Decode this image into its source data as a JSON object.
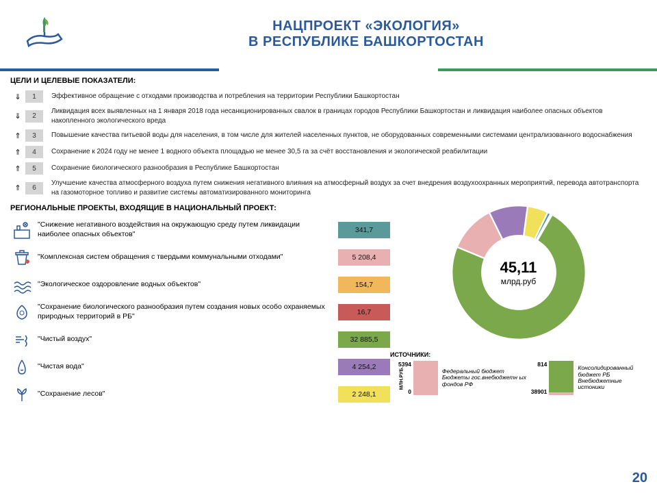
{
  "header": {
    "title_line1": "НАЦПРОЕКТ «ЭКОЛОГИЯ»",
    "title_line2": "В РЕСПУБЛИКЕ БАШКОРТОСТАН",
    "title_color": "#2a5a9b",
    "stripe_colors": [
      "#2a5a9b",
      "#ffffff",
      "#3a9a5c"
    ]
  },
  "goals_title": "ЦЕЛИ И ЦЕЛЕВЫЕ ПОКАЗАТЕЛИ:",
  "goals_numbox_bg": "#d5d5d5",
  "goals": [
    {
      "arrow": "⇓",
      "num": "1",
      "text": "Эффективное обращение с отходами производства и потребления на территории Республики Башкортостан"
    },
    {
      "arrow": "⇓",
      "num": "2",
      "text": "Ликвидация всех выявленных на 1 января 2018 года несанкционированных свалок в границах городов Республики Башкортостан и ликвидация наиболее опасных объектов накопленного экологического вреда"
    },
    {
      "arrow": "⇑",
      "num": "3",
      "text": "Повышение качества питьевой воды для населения, в том числе для жителей населенных пунктов, не оборудованных современными системами централизованного водоснабжения"
    },
    {
      "arrow": "⇑",
      "num": "4",
      "text": "Сохранение к 2024 году не менее 1 водного объекта площадью не менее 30,5 га за счёт восстановления и экологической реабилитации"
    },
    {
      "arrow": "⇑",
      "num": "5",
      "text": "Сохранение биологического разнообразия в Республике Башкортостан"
    },
    {
      "arrow": "⇑",
      "num": "6",
      "text": "Улучшение качества атмосферного воздуха путем снижения негативного влияния на атмосферный воздух за счет внедрения воздухоохранных мероприятий, перевода автотранспорта на газомоторное топливо и развитие системы автоматизированного мониторинга"
    }
  ],
  "projects_title": "РЕГИОНАЛЬНЫЕ ПРОЕКТЫ, ВХОДЯЩИЕ В НАЦИОНАЛЬНЫЙ ПРОЕКТ:",
  "projects": [
    {
      "text": "\"Снижение негативного воздействия на окружающую среду путем ликвидации наиболее опасных объектов\"",
      "value": "341,7",
      "color": "#5a9a9a"
    },
    {
      "text": "\"Комплексная систем обращения с твердыми коммунальными отходами\"",
      "value": "5 208,4",
      "color": "#e8b0b0"
    },
    {
      "text": "\"Экологическое оздоровление водных объектов\"",
      "value": "154,7",
      "color": "#f0b85a"
    },
    {
      "text": "\"Сохранение биологического разнообразия путем создания новых особо охраняемых природных территорий в РБ\"",
      "value": "16,7",
      "color": "#c85a5a"
    },
    {
      "text": "\"Чистый воздух\"",
      "value": "32 885,5",
      "color": "#7aa84a"
    },
    {
      "text": "\"Чистая вода\"",
      "value": "4 254,2",
      "color": "#9a7ab8"
    },
    {
      "text": "\"Сохранение лесов\"",
      "value": "2 248,1",
      "color": "#f0e05a"
    }
  ],
  "donut": {
    "center_value": "45,11",
    "center_unit": "млрд.руб",
    "slices": [
      {
        "color": "#7aa84a",
        "pct": 72.9
      },
      {
        "color": "#e8b0b0",
        "pct": 11.5
      },
      {
        "color": "#9a7ab8",
        "pct": 9.4
      },
      {
        "color": "#f0e05a",
        "pct": 5.0
      },
      {
        "color": "#5a9a9a",
        "pct": 0.8
      },
      {
        "color": "#f0b85a",
        "pct": 0.3
      },
      {
        "color": "#c85a5a",
        "pct": 0.1
      }
    ],
    "inner_ratio": 0.55,
    "stroke": "#ffffff",
    "stroke_width": 2
  },
  "sources": {
    "title": "ИСТОЧНИКИ:",
    "axis_label": "МЛН.РУБ.",
    "col1": {
      "top_val": "5394",
      "bottom_val": "0",
      "segments": [
        {
          "color": "#e8b0b0",
          "h": 50
        }
      ],
      "labels": [
        "Федеральный бюджет",
        "Бюджеты гос.внебюджетн ых фондов РФ"
      ]
    },
    "col2": {
      "top_val": "814",
      "bottom_val": "38901",
      "segments": [
        {
          "color": "#e8b0b0",
          "h": 4
        },
        {
          "color": "#7aa84a",
          "h": 46
        }
      ],
      "labels": [
        "Консолидированный бюджет РБ",
        "Внебюджетные истоники"
      ]
    }
  },
  "page_number": "20",
  "icon_color": "#2a5a9b"
}
